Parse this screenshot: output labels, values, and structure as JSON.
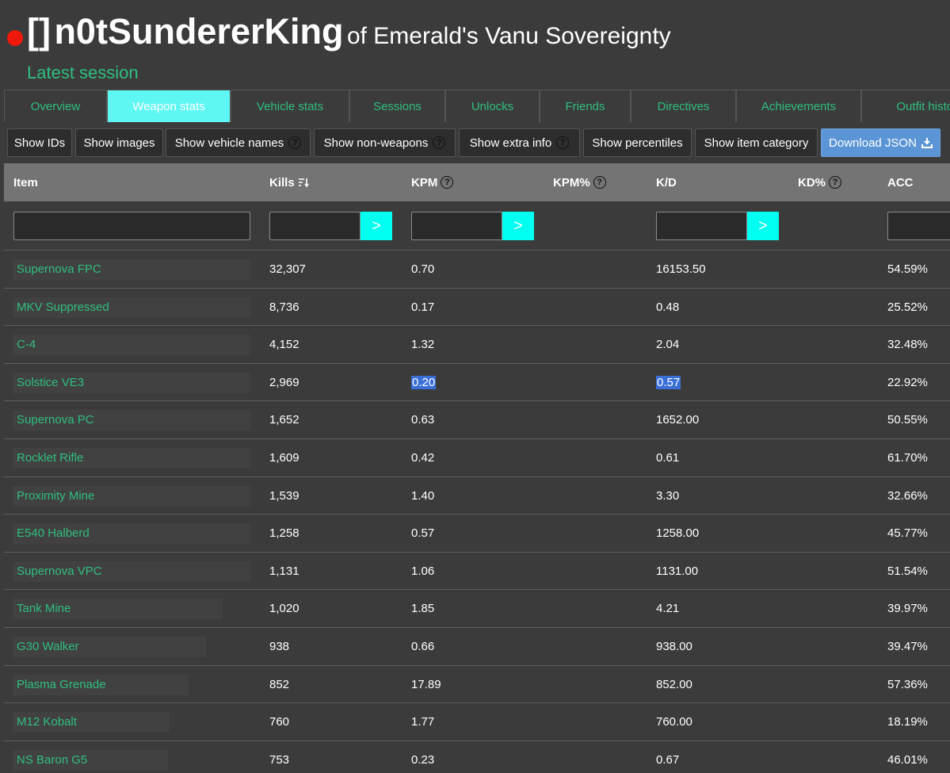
{
  "header": {
    "tag": "[]",
    "name": "n0tSundererKing",
    "suffix": "of Emerald's Vanu Sovereignty",
    "session": "Latest session"
  },
  "tabs": [
    "Overview",
    "Weapon stats",
    "Vehicle stats",
    "Sessions",
    "Unlocks",
    "Friends",
    "Directives",
    "Achievements",
    "Outfit history"
  ],
  "buttons": [
    {
      "label": "Show IDs"
    },
    {
      "label": "Show images"
    },
    {
      "label": "Show vehicle names",
      "help": "?"
    },
    {
      "label": "Show non-weapons",
      "help": "?"
    },
    {
      "label": "Show extra info",
      "help": "?"
    },
    {
      "label": "Show percentiles"
    },
    {
      "label": "Show item category"
    },
    {
      "label": "Download JSON"
    }
  ],
  "table": {
    "columns": [
      {
        "label": "Item"
      },
      {
        "label": "Kills"
      },
      {
        "label": "KPM",
        "help": "?"
      },
      {
        "label": "KPM%",
        "help": "?"
      },
      {
        "label": "K/D"
      },
      {
        "label": "KD%",
        "help": "?"
      },
      {
        "label": "ACC"
      }
    ],
    "filter_button": ">",
    "rows": [
      {
        "item": "Supernova FPC",
        "kills": "32,307",
        "kpm": "0.70",
        "kd": "16153.50",
        "acc": "54.59%"
      },
      {
        "item": "MKV Suppressed",
        "kills": "8,736",
        "kpm": "0.17",
        "kd": "0.48",
        "acc": "25.52%"
      },
      {
        "item": "C-4",
        "kills": "4,152",
        "kpm": "1.32",
        "kd": "2.04",
        "acc": "32.48%"
      },
      {
        "item": "Solstice VE3",
        "kills": "2,969",
        "kpm": "0.20",
        "kd": "0.57",
        "acc": "22.92%"
      },
      {
        "item": "Supernova PC",
        "kills": "1,652",
        "kpm": "0.63",
        "kd": "1652.00",
        "acc": "50.55%"
      },
      {
        "item": "Rocklet Rifle",
        "kills": "1,609",
        "kpm": "0.42",
        "kd": "0.61",
        "acc": "61.70%"
      },
      {
        "item": "Proximity Mine",
        "kills": "1,539",
        "kpm": "1.40",
        "kd": "3.30",
        "acc": "32.66%"
      },
      {
        "item": "E540 Halberd",
        "kills": "1,258",
        "kpm": "0.57",
        "kd": "1258.00",
        "acc": "45.77%"
      },
      {
        "item": "Supernova VPC",
        "kills": "1,131",
        "kpm": "1.06",
        "kd": "1131.00",
        "acc": "51.54%"
      },
      {
        "item": "Tank Mine",
        "kills": "1,020",
        "kpm": "1.85",
        "kd": "4.21",
        "acc": "39.97%"
      },
      {
        "item": "G30 Walker",
        "kills": "938",
        "kpm": "0.66",
        "kd": "938.00",
        "acc": "39.47%"
      },
      {
        "item": "Plasma Grenade",
        "kills": "852",
        "kpm": "17.89",
        "kd": "852.00",
        "acc": "57.36%"
      },
      {
        "item": "M12 Kobalt",
        "kills": "760",
        "kpm": "1.77",
        "kd": "760.00",
        "acc": "18.19%"
      },
      {
        "item": "NS Baron G5",
        "kills": "753",
        "kpm": "0.23",
        "kd": "0.67",
        "acc": "46.01%"
      }
    ]
  }
}
